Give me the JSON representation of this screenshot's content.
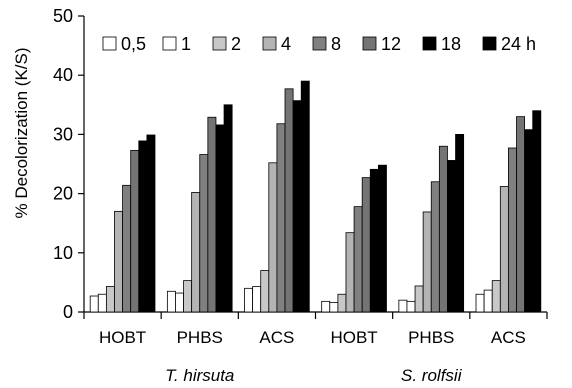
{
  "chart_data": {
    "type": "bar",
    "title": "",
    "ylabel": "% Decolorization (K/S)",
    "xlabel": "",
    "ylim": [
      0,
      50
    ],
    "yticks": [
      0,
      10,
      20,
      30,
      40,
      50
    ],
    "grid": false,
    "legend_position": "top",
    "categories": [
      "HOBT",
      "PHBS",
      "ACS",
      "HOBT",
      "PHBS",
      "ACS"
    ],
    "groups": [
      {
        "name": "T. hirsuta",
        "categories": [
          "HOBT",
          "PHBS",
          "ACS"
        ]
      },
      {
        "name": "S. rolfsii",
        "categories": [
          "HOBT",
          "PHBS",
          "ACS"
        ]
      }
    ],
    "series": [
      {
        "name": "0,5",
        "color": "#ffffff",
        "values": [
          2.7,
          3.5,
          4.0,
          1.8,
          2.0,
          3.0
        ]
      },
      {
        "name": "1",
        "color": "#ffffff",
        "values": [
          3.0,
          3.2,
          4.3,
          1.6,
          1.8,
          3.7
        ]
      },
      {
        "name": "2",
        "color": "#c8c8c8",
        "values": [
          4.3,
          5.3,
          7.0,
          3.0,
          4.4,
          5.3
        ]
      },
      {
        "name": "4",
        "color": "#b4b4b4",
        "values": [
          17.0,
          20.2,
          25.2,
          13.4,
          16.9,
          21.2
        ]
      },
      {
        "name": "8",
        "color": "#808080",
        "values": [
          21.4,
          26.6,
          31.8,
          17.8,
          22.0,
          27.7
        ]
      },
      {
        "name": "12",
        "color": "#747474",
        "values": [
          27.3,
          32.9,
          37.7,
          22.7,
          28.0,
          33.0
        ]
      },
      {
        "name": "18",
        "color": "#000000",
        "values": [
          28.9,
          31.6,
          35.7,
          24.1,
          25.6,
          30.8
        ]
      },
      {
        "name": "24 h",
        "color": "#000000",
        "values": [
          29.9,
          35.0,
          39.0,
          24.8,
          30.0,
          34.0
        ]
      }
    ]
  }
}
